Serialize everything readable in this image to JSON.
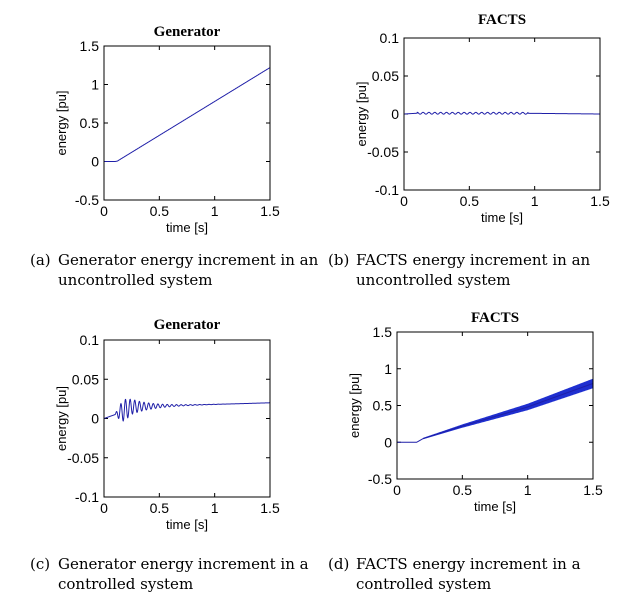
{
  "chart_data": [
    {
      "type": "line",
      "title": "Generator",
      "xlabel": "time [s]",
      "ylabel": "energy [pu]",
      "xlim": [
        0,
        1.5
      ],
      "ylim": [
        -0.5,
        1.5
      ],
      "xticks": [
        "0",
        "0.5",
        "1",
        "1.5"
      ],
      "yticks": [
        "1.5",
        "1",
        "0.5",
        "0",
        "-0.5"
      ],
      "series": [
        {
          "name": "Generator energy",
          "x": [
            0,
            0.1,
            0.12,
            1.5
          ],
          "y": [
            0,
            0,
            0.005,
            1.22
          ]
        }
      ],
      "caption": {
        "tag": "(a)",
        "line1": "Generator energy increment in an",
        "line2": "uncontrolled system"
      }
    },
    {
      "type": "line",
      "title": "FACTS",
      "xlabel": "time [s]",
      "ylabel": "energy [pu]",
      "xlim": [
        0,
        1.5
      ],
      "ylim": [
        -0.1,
        0.1
      ],
      "xticks": [
        "0",
        "0.5",
        "1",
        "1.5"
      ],
      "yticks": [
        "0.1",
        "0.05",
        "0",
        "-0.05",
        "-0.1"
      ],
      "series": [
        {
          "name": "FACTS energy",
          "x": [
            0,
            0.1,
            0.9,
            1.5
          ],
          "y": [
            0,
            0.001,
            0.001,
            0
          ]
        }
      ],
      "caption": {
        "tag": "(b)",
        "line1": "FACTS energy increment in an",
        "line2": "uncontrolled system"
      }
    },
    {
      "type": "line",
      "title": "Generator",
      "xlabel": "time [s]",
      "ylabel": "energy [pu]",
      "xlim": [
        0,
        1.5
      ],
      "ylim": [
        -0.1,
        0.1
      ],
      "xticks": [
        "0",
        "0.5",
        "1",
        "1.5"
      ],
      "yticks": [
        "0.1",
        "0.05",
        "0",
        "-0.05",
        "-0.1"
      ],
      "series": [
        {
          "name": "Generator energy",
          "x": [
            0,
            0.1,
            0.25,
            0.5,
            1.0,
            1.5
          ],
          "y": [
            0,
            0.005,
            0.015,
            0.016,
            0.018,
            0.02
          ]
        }
      ],
      "caption": {
        "tag": "(c)",
        "line1": "Generator energy increment in a",
        "line2": "controlled system"
      }
    },
    {
      "type": "line",
      "title": "FACTS",
      "xlabel": "time [s]",
      "ylabel": "energy [pu]",
      "xlim": [
        0,
        1.5
      ],
      "ylim": [
        -0.5,
        1.5
      ],
      "xticks": [
        "0",
        "0.5",
        "1",
        "1.5"
      ],
      "yticks": [
        "1.5",
        "1",
        "0.5",
        "0",
        "-0.5"
      ],
      "series": [
        {
          "name": "FACTS energy",
          "x": [
            0,
            0.15,
            0.2,
            0.5,
            1.0,
            1.5
          ],
          "y": [
            0,
            0,
            0.05,
            0.22,
            0.48,
            0.8
          ]
        }
      ],
      "caption": {
        "tag": "(d)",
        "line1": "FACTS energy increment in a",
        "line2": "controlled system"
      }
    }
  ]
}
